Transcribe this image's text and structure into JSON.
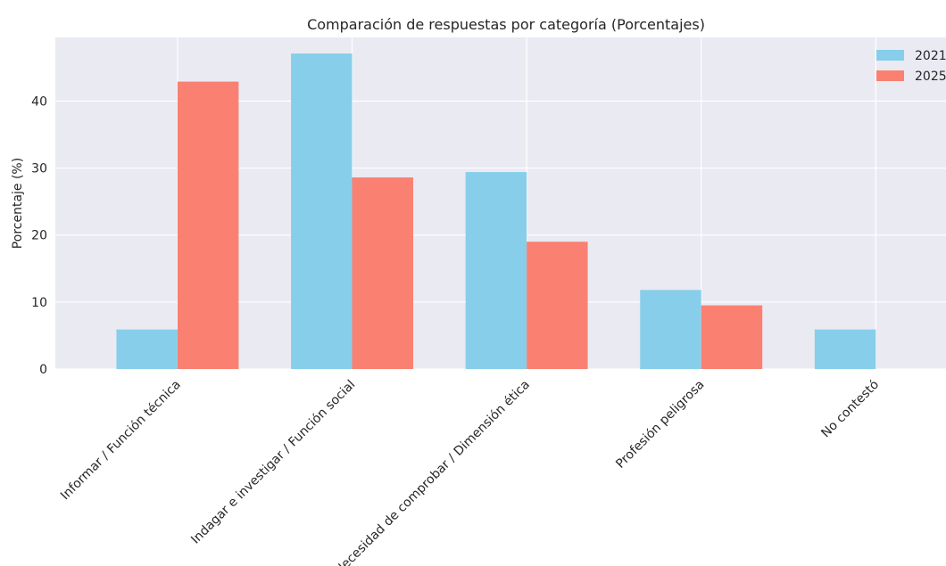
{
  "chart_data": {
    "type": "bar",
    "title": "Comparación de respuestas por categoría (Porcentajes)",
    "xlabel": "",
    "ylabel": "Porcentaje (%)",
    "categories": [
      "Informar / Función técnica",
      "Indagar e investigar / Función social",
      "Necesidad de comprobar / Dimensión ética",
      "Profesión peligrosa",
      "No contestó"
    ],
    "series": [
      {
        "name": "2021",
        "color": "#87CEEB",
        "values": [
          5.9,
          47.1,
          29.4,
          11.8,
          5.9
        ]
      },
      {
        "name": "2025",
        "color": "#FA8072",
        "values": [
          42.9,
          28.6,
          19.0,
          9.5,
          0.0
        ]
      }
    ],
    "ylim": [
      0,
      49.5
    ],
    "yticks": [
      0,
      10,
      20,
      30,
      40
    ],
    "grid": true,
    "legend_position": "top-right"
  }
}
